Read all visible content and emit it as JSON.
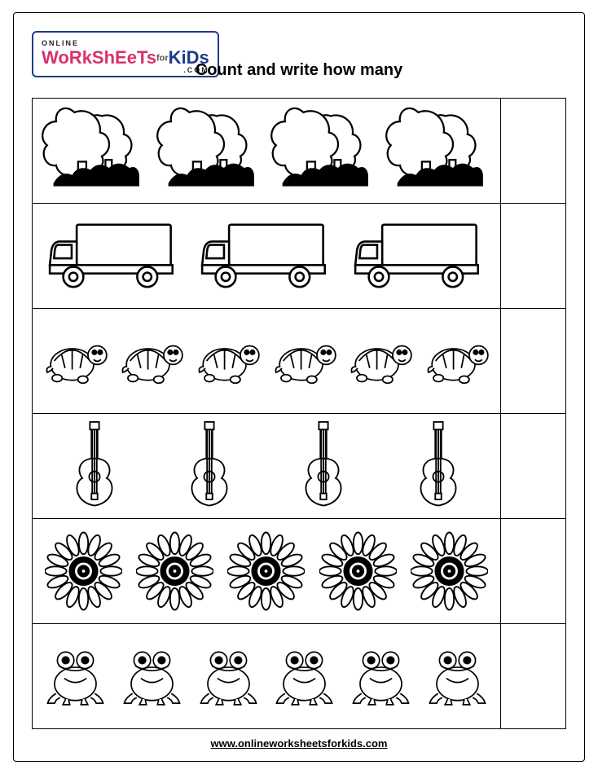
{
  "logo": {
    "online": "ONLINE",
    "worksheets": "WoRkShEeTs",
    "for": "for",
    "kids": "KiDs",
    "com": ".COM"
  },
  "title": "Count and write how many",
  "footer_url": "www.onlineworksheetsforkids.com",
  "rows": [
    {
      "icon": "tree",
      "count": 4,
      "item_width": 130
    },
    {
      "icon": "truck",
      "count": 3,
      "item_width": 165
    },
    {
      "icon": "turtle",
      "count": 6,
      "item_width": 88
    },
    {
      "icon": "guitar",
      "count": 4,
      "item_width": 120
    },
    {
      "icon": "flower",
      "count": 5,
      "item_width": 95
    },
    {
      "icon": "frog",
      "count": 6,
      "item_width": 85
    }
  ],
  "colors": {
    "stroke": "#000000",
    "fill": "#ffffff",
    "page_bg": "#ffffff",
    "logo_pink": "#d6336c",
    "logo_blue": "#1e3a8a"
  }
}
